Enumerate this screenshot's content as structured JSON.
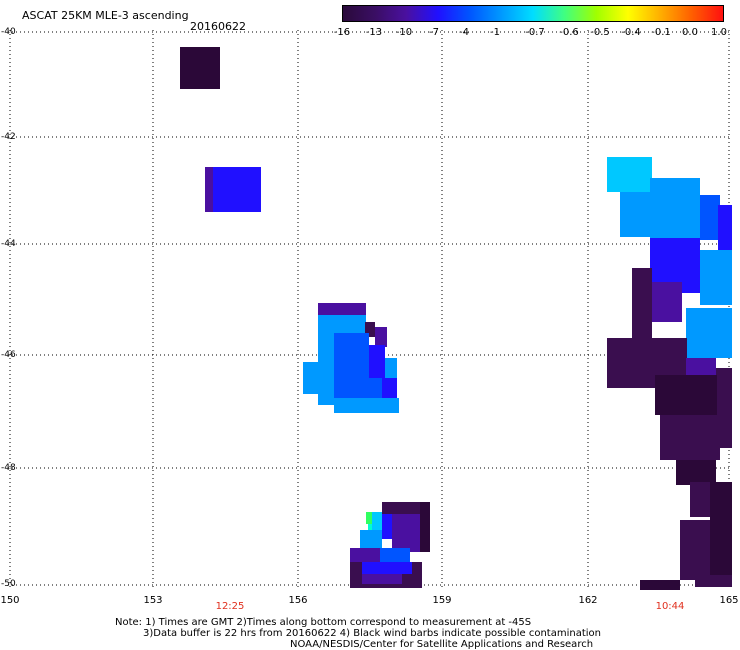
{
  "header": {
    "title": "ASCAT 25KM MLE-3 ascending",
    "date": "20160622"
  },
  "colorbar": {
    "labels": [
      "-16",
      "-13",
      "-10",
      "-7",
      "-4",
      "-1",
      "-0.7",
      "-0.6",
      "-0.5",
      "-0.4",
      "-0.1",
      "0.0",
      "1.0"
    ],
    "colors": [
      "#2a0a3a",
      "#3a0e63",
      "#4a10a0",
      "#2010ff",
      "#0055ff",
      "#0099ff",
      "#00ddff",
      "#40ff80",
      "#a0ff00",
      "#ffff00",
      "#ffb000",
      "#ff6000",
      "#ff1010"
    ]
  },
  "map": {
    "lat_labels": [
      "-40",
      "-42",
      "-44",
      "-46",
      "-48",
      "-50"
    ],
    "lon_labels": [
      "150",
      "153",
      "156",
      "159",
      "162",
      "165"
    ],
    "time_labels": [
      "12:25",
      "10:44"
    ],
    "lat_range": [
      -50,
      -40
    ],
    "lon_range": [
      150,
      165
    ],
    "grid": true,
    "time_label_color": "#e0301e"
  },
  "footer": {
    "line1": "Note: 1) Times are GMT 2)Times along bottom correspond to measurement at -45S",
    "line2": "3)Data buffer is 22 hrs from 20160622 4) Black wind barbs indicate possible contamination",
    "line3": "NOAA/NESDIS/Center for Satellite Applications and Research"
  }
}
